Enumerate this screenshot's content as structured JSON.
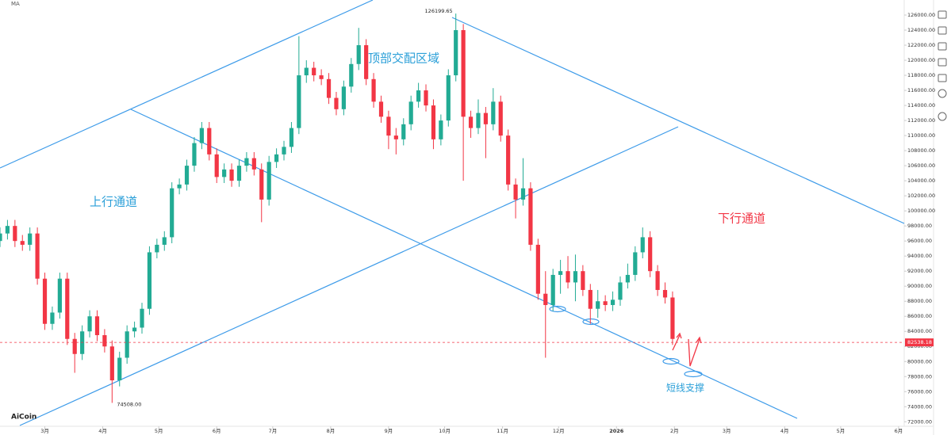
{
  "chart_data": {
    "type": "candlestick",
    "indicator": "MA",
    "brand": "AiCoin",
    "annotations": [
      "上行通道",
      "顶部交配区域",
      "下行通道",
      "短线支撑"
    ],
    "high_label": "126199.65",
    "low_label": "74508.00",
    "last_price": 82538.18,
    "up_color": "#22ab94",
    "down_color": "#f23645",
    "x": [
      0,
      4,
      8,
      12,
      16,
      20,
      24,
      28,
      32,
      36,
      40,
      44,
      48,
      52,
      56,
      60,
      64,
      68,
      72,
      76,
      80,
      84,
      88,
      92,
      96,
      100,
      104,
      108,
      112,
      116,
      120,
      124,
      128,
      132,
      136,
      140,
      144,
      148,
      152,
      156,
      160,
      164,
      168,
      172,
      176,
      180,
      184,
      188,
      192,
      196,
      200,
      204,
      208,
      212,
      216,
      220,
      224,
      228,
      232,
      236,
      240,
      244,
      248,
      252,
      256,
      260,
      264,
      268,
      272,
      276,
      280,
      284,
      288,
      292,
      296,
      300,
      304,
      308,
      312,
      316,
      320,
      324,
      328,
      332,
      336,
      340,
      344,
      348,
      352,
      356,
      360
    ],
    "open": [
      96000,
      97000,
      98000,
      96000,
      95500,
      97000,
      91000,
      85000,
      86500,
      91000,
      83000,
      81000,
      84000,
      86000,
      83500,
      82000,
      77500,
      80500,
      84000,
      84500,
      87000,
      94500,
      95500,
      96500,
      103000,
      103500,
      106000,
      109000,
      111000,
      107500,
      104500,
      105500,
      104000,
      106000,
      107000,
      105500,
      101500,
      106500,
      107500,
      108500,
      111000,
      118000,
      119000,
      118000,
      117500,
      115000,
      113500,
      116500,
      119500,
      122000,
      117500,
      114500,
      112500,
      110000,
      109500,
      111500,
      114500,
      116000,
      114000,
      109500,
      112000,
      118000,
      124000,
      112500,
      111000,
      113000,
      111500,
      114500,
      110000,
      103500,
      101500,
      103000,
      95500,
      89000,
      87500,
      91500,
      92000,
      90500,
      92000,
      89500,
      87000,
      88000,
      87500,
      88200,
      90500,
      91500,
      94500,
      96500,
      92000,
      89500,
      88500
    ],
    "high": [
      97800,
      98800,
      98800,
      96800,
      97800,
      97800,
      91800,
      87300,
      91800,
      91800,
      83800,
      84800,
      86800,
      86800,
      84300,
      82800,
      81300,
      84800,
      85300,
      87800,
      95300,
      96300,
      97300,
      103800,
      104300,
      106800,
      109800,
      111800,
      111800,
      108300,
      106300,
      106300,
      106800,
      107800,
      107800,
      106300,
      107300,
      108300,
      109300,
      111800,
      123200,
      120000,
      119800,
      118800,
      118300,
      115800,
      117300,
      120300,
      124300,
      122800,
      118300,
      115300,
      113300,
      111000,
      112300,
      115300,
      117000,
      116800,
      114800,
      112800,
      118800,
      126199.65,
      124800,
      113300,
      114800,
      113800,
      116300,
      115300,
      110800,
      104300,
      107000,
      103800,
      96300,
      92000,
      92300,
      93500,
      94000,
      94200,
      92800,
      90300,
      89500,
      88800,
      89300,
      91300,
      93000,
      95300,
      97800,
      97300,
      92800,
      90500,
      89300
    ],
    "low": [
      95200,
      96200,
      95200,
      94700,
      94700,
      90200,
      84200,
      84200,
      85700,
      82200,
      78500,
      80200,
      83200,
      82700,
      81200,
      74508,
      76700,
      79700,
      83200,
      83700,
      86200,
      93700,
      94700,
      95700,
      102200,
      102700,
      105200,
      108200,
      106700,
      103700,
      103700,
      103200,
      103200,
      105200,
      104700,
      98500,
      100700,
      105700,
      106700,
      107700,
      110200,
      117000,
      117200,
      116700,
      114200,
      112700,
      112700,
      115700,
      118700,
      116700,
      113700,
      111700,
      108200,
      107500,
      108700,
      110700,
      113700,
      113200,
      108200,
      108700,
      111200,
      117200,
      104000,
      109700,
      110200,
      107000,
      110700,
      109200,
      102700,
      99000,
      100700,
      94700,
      88200,
      80500,
      86700,
      89000,
      89700,
      88000,
      88700,
      85000,
      85800,
      86700,
      86700,
      87400,
      89700,
      90700,
      93700,
      91200,
      88700,
      87700,
      82200
    ],
    "close": [
      97000,
      98000,
      96000,
      95500,
      97000,
      91000,
      85000,
      86500,
      91000,
      83000,
      81000,
      84000,
      86000,
      83500,
      82000,
      77500,
      80500,
      84000,
      84500,
      87000,
      94500,
      95500,
      96500,
      103000,
      103500,
      106000,
      109000,
      111000,
      107500,
      104500,
      105500,
      104000,
      106000,
      107000,
      105500,
      101500,
      106500,
      107500,
      108500,
      111000,
      118000,
      119000,
      118000,
      117500,
      115000,
      113500,
      116500,
      119500,
      122000,
      117500,
      114500,
      112500,
      110000,
      109500,
      111500,
      114500,
      116000,
      114000,
      109500,
      112000,
      118000,
      124000,
      112500,
      111000,
      113000,
      111500,
      114500,
      110000,
      103500,
      101500,
      103000,
      95500,
      89000,
      87500,
      91500,
      92000,
      90500,
      92000,
      89500,
      87000,
      88000,
      87500,
      88200,
      90500,
      91500,
      94500,
      96500,
      92000,
      89500,
      88500,
      83000
    ],
    "xlim": [
      0,
      484
    ],
    "xticks": [
      {
        "value": 24,
        "label": "3月"
      },
      {
        "value": 55,
        "label": "4月"
      },
      {
        "value": 85,
        "label": "5月"
      },
      {
        "value": 116,
        "label": "6月"
      },
      {
        "value": 146,
        "label": "7月"
      },
      {
        "value": 177,
        "label": "8月"
      },
      {
        "value": 208,
        "label": "9月"
      },
      {
        "value": 238,
        "label": "10月"
      },
      {
        "value": 269,
        "label": "11月"
      },
      {
        "value": 299,
        "label": "12月"
      },
      {
        "value": 330,
        "label": "2026"
      },
      {
        "value": 361,
        "label": "2月"
      },
      {
        "value": 389,
        "label": "3月"
      },
      {
        "value": 420,
        "label": "4月"
      },
      {
        "value": 450,
        "label": "5月"
      },
      {
        "value": 481,
        "label": "6月"
      }
    ],
    "ylim": [
      71400,
      128000
    ],
    "yticks": [
      {
        "value": 72000,
        "label": "72000.00"
      },
      {
        "value": 74000,
        "label": "74000.00"
      },
      {
        "value": 76000,
        "label": "76000.00"
      },
      {
        "value": 78000,
        "label": "78000.00"
      },
      {
        "value": 80000,
        "label": "80000.00"
      },
      {
        "value": 82000,
        "label": "82000.00"
      },
      {
        "value": 84000,
        "label": "84000.00"
      },
      {
        "value": 86000,
        "label": "86000.00"
      },
      {
        "value": 88000,
        "label": "88000.00"
      },
      {
        "value": 90000,
        "label": "90000.00"
      },
      {
        "value": 92000,
        "label": "92000.00"
      },
      {
        "value": 94000,
        "label": "94000.00"
      },
      {
        "value": 96000,
        "label": "96000.00"
      },
      {
        "value": 98000,
        "label": "98000.00"
      },
      {
        "value": 100000,
        "label": "100000.00"
      },
      {
        "value": 102000,
        "label": "102000.00"
      },
      {
        "value": 104000,
        "label": "104000.00"
      },
      {
        "value": 106000,
        "label": "106000.00"
      },
      {
        "value": 108000,
        "label": "108000.00"
      },
      {
        "value": 110000,
        "label": "110000.00"
      },
      {
        "value": 112000,
        "label": "112000.00"
      },
      {
        "value": 114000,
        "label": "114000.00"
      },
      {
        "value": 116000,
        "label": "116000.00"
      },
      {
        "value": 118000,
        "label": "118000.00"
      },
      {
        "value": 120000,
        "label": "120000.00"
      },
      {
        "value": 122000,
        "label": "122000.00"
      },
      {
        "value": 124000,
        "label": "124000.00"
      },
      {
        "value": 126000,
        "label": "126000.00"
      }
    ]
  }
}
